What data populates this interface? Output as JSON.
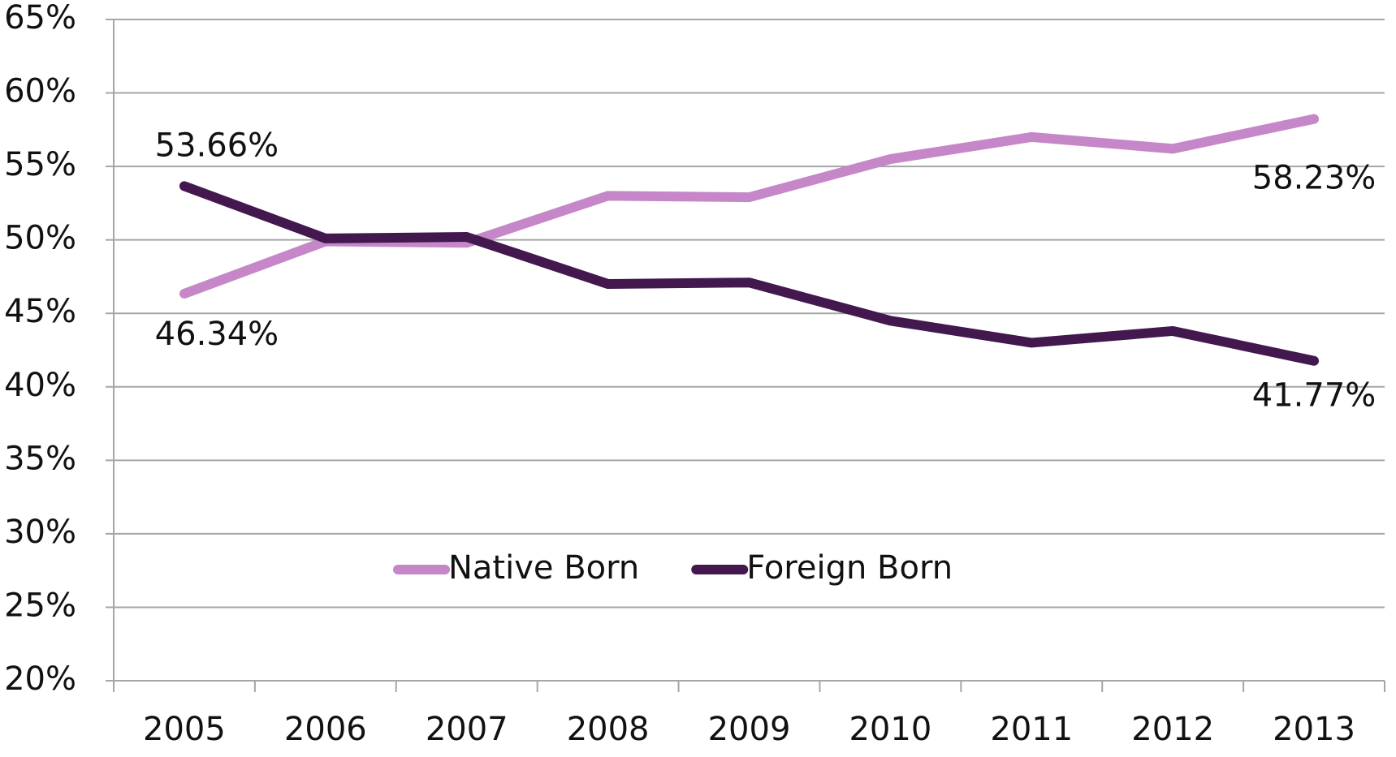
{
  "chart_data": {
    "type": "line",
    "categories": [
      "2005",
      "2006",
      "2007",
      "2008",
      "2009",
      "2010",
      "2011",
      "2012",
      "2013"
    ],
    "series": [
      {
        "name": "Native Born",
        "color": "#c687c9",
        "values": [
          46.34,
          49.9,
          49.8,
          53.0,
          52.9,
          55.5,
          57.0,
          56.2,
          58.23
        ],
        "value_labels": [
          "46.34%",
          null,
          null,
          null,
          null,
          null,
          null,
          null,
          "58.23%"
        ]
      },
      {
        "name": "Foreign Born",
        "color": "#43184f",
        "values": [
          53.66,
          50.1,
          50.2,
          47.0,
          47.1,
          44.5,
          43.0,
          43.8,
          41.77
        ],
        "value_labels": [
          "53.66%",
          null,
          null,
          null,
          null,
          null,
          null,
          null,
          "41.77%"
        ]
      }
    ],
    "ylim": [
      20,
      65
    ],
    "yticks": [
      {
        "value": 20,
        "label": "20%"
      },
      {
        "value": 25,
        "label": "25%"
      },
      {
        "value": 30,
        "label": "30%"
      },
      {
        "value": 35,
        "label": "35%"
      },
      {
        "value": 40,
        "label": "40%"
      },
      {
        "value": 45,
        "label": "45%"
      },
      {
        "value": 50,
        "label": "50%"
      },
      {
        "value": 55,
        "label": "55%"
      },
      {
        "value": 60,
        "label": "60%"
      },
      {
        "value": 65,
        "label": "65%"
      }
    ],
    "grid": true,
    "legend": "center"
  }
}
